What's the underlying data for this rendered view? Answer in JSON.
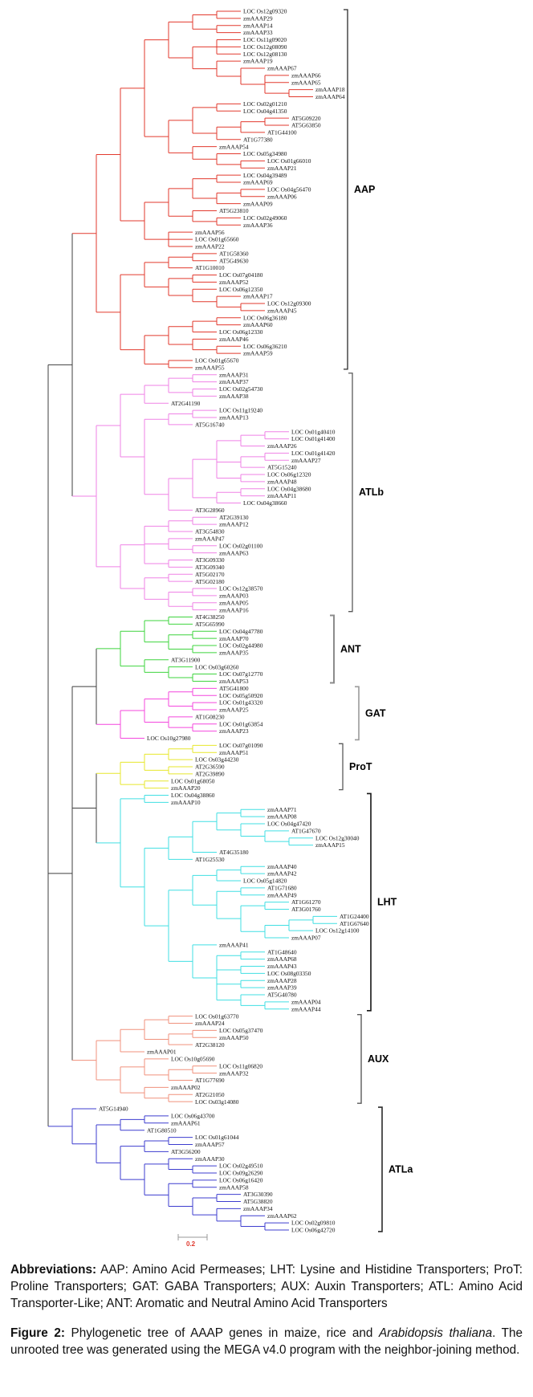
{
  "figure": {
    "scale_bar": {
      "label": "0.2",
      "color": "#e0392e"
    },
    "backbone": [
      [
        "AAP",
        "ATLb"
      ],
      [
        [
          "ANT",
          "GAT"
        ],
        [
          "ProT",
          "LHT"
        ],
        "AUX"
      ],
      "ATLa"
    ],
    "backbone_color": "#3f3f3f",
    "clades": [
      {
        "name": "AAP",
        "color": "#e23a2e",
        "newick": "((((((LOC Os12g09320,zmAAAP29),(zmAAAP14,zmAAAP33)),((LOC Os11g09020,LOC Os12g08090,LOC Os12g08130),(zmAAAP19,(zmAAAP67,(zmAAAP66,zmAAAP65,(zmAAAP18,zmAAAP64)))))),(((LOC Os02g01210,LOC Os04g41350),(((AT5G09220,AT5G63850),AT1G44100),AT1G77380)),(zmAAAP54,(LOC Os05g34980,(LOC Os01g66010,zmAAAP21))))),((((LOC Os04g39489,zmAAAP69),((LOC Os04g56470,zmAAAP06),zmAAAP09)),(AT5G23810,(LOC Os02g49060,zmAAAP36))),(zmAAAP56,LOC Os01g65660,zmAAAP22))),((((AT1G58360,AT5G49630),AT1G10010),((LOC Os07g04180,zmAAAP52),(LOC Os06g12350,(zmAAAP17,(LOC Os12g09300,zmAAAP45))))),((((LOC Os06g36180,zmAAAP60),LOC Os06g12330),(zmAAAP46,(LOC Os06g36210,zmAAAP59))),(LOC Os01g65670,zmAAAP55))))"
      },
      {
        "name": "ATLb",
        "color": "#ef82e6",
        "newick": "(((((zmAAAP31,zmAAAP37),(LOC Os02g54730,zmAAAP38)),AT2G41190),(((LOC Os11g19240,zmAAAP13),AT5G16740),(((((LOC Os01g40410,LOC Os01g41400),zmAAAP26),((LOC Os01g41420,zmAAAP27),AT5G15240),(LOC Os06g12320,zmAAAP48)),((LOC Os04g38680,zmAAAP11),LOC Os04g38660)),AT3G28960))),((((AT2G39130,zmAAAP12),AT3G54830),(zmAAAP47,(LOC Os02g01100,zmAAAP63)),(AT3G09330,AT3G09340)),((AT5G02170,AT5G02180),((LOC Os12g38570,zmAAAP03),(zmAAAP05,zmAAAP16)))))"
      },
      {
        "name": "ANT",
        "color": "#3ed43e",
        "newick": "(((AT4G38250,AT5G65990),((LOC Os04g47780,zmAAAP70),(LOC Os02g44980,zmAAAP35))),(AT3G11900,(LOC Os03g60260,(LOC Os07g12770,zmAAAP53))))"
      },
      {
        "name": "GAT",
        "color": "#f447de",
        "newick": "((((AT5G41800,LOC Os05g50920),(LOC Os01g43320,zmAAAP25)),(AT1G08230,(LOC Os01g63854,zmAAAP23))),LOC Os10g27980)"
      },
      {
        "name": "ProT",
        "color": "#e7e72b",
        "newick": "((((LOC Os07g01090,zmAAAP51),LOC Os03g44230),(AT2G36590,AT2G39890)),(LOC Os01g68050,zmAAAP20))"
      },
      {
        "name": "LHT",
        "color": "#41dfe3",
        "newick": "((LOC Os04g38860,zmAAAP10),(((((zmAAAP71,zmAAAP08),(LOC Os04g47420,(AT1G47670,(LOC Os12g30040,zmAAAP15)))),AT4G35180),AT1G25530),((((zmAAAP40,zmAAAP42),LOC Os05g14820),((AT1G71680,zmAAAP49),((AT1G61270,AT3G01760),(((AT1G24400,AT1G67640),LOC Os12g14100),zmAAAP07)))),(zmAAAP41,((AT1G48640,zmAAAP68),(zmAAAP43,LOC Os08g03350),(zmAAAP28,zmAAAP39),(AT5G40780,(zmAAAP04,zmAAAP44)))))))"
      },
      {
        "name": "AUX",
        "color": "#f0917c",
        "newick": "((((LOC Os01g63770,zmAAAP24),((LOC Os05g37470,zmAAAP50),AT2G38120)),zmAAAP01),((LOC Os10g05690,((LOC Os11g06820,zmAAAP32),AT1G77690)),(zmAAAP02,(AT2G21050,LOC Os03g14080))))"
      },
      {
        "name": "ATLa",
        "color": "#3d3dcf",
        "newick": "(AT5G14940,(((LOC Os06g43700,zmAAAP61),AT1G80510),(((LOC Os01g61044,zmAAAP57),AT3G56200),((zmAAAP30,(LOC Os02g49510,LOC Os09g26290)),((LOC Os06g16420,zmAAAP58),((AT3G30390,AT5G38820),(zmAAAP34,(zmAAAP62,(LOC Os02g09810,LOC Os06g42720)))))))))"
      }
    ]
  },
  "caption": {
    "abbreviations_label": "Abbreviations:",
    "abbreviations_text": "AAP: Amino Acid Permeases; LHT: Lysine and Histidine Transporters; ProT: Proline Transporters; GAT: GABA Transporters; AUX: Auxin Transporters; ATL: Amino Acid Transporter-Like; ANT: Aromatic and Neutral Amino Acid Transporters",
    "figure_label": "Figure 2:",
    "figure_text_1": "Phylogenetic tree of AAAP genes in maize, rice and ",
    "figure_text_italic": "Arabidopsis thaliana",
    "figure_text_2": ". The unrooted tree was generated using the MEGA v4.0 program with the neighbor-joining method."
  }
}
